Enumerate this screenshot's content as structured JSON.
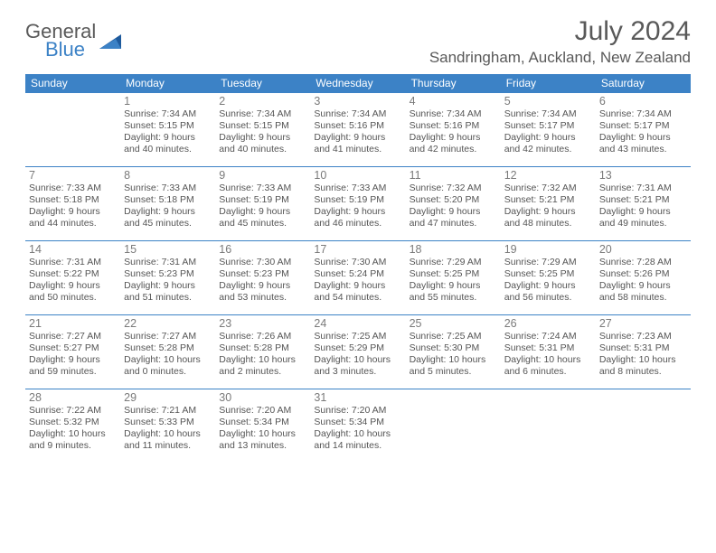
{
  "brand": {
    "name1": "General",
    "name2": "Blue"
  },
  "title": "July 2024",
  "location": "Sandringham, Auckland, New Zealand",
  "colors": {
    "accent": "#3c82c6",
    "text": "#555555",
    "muted": "#7a7a7a",
    "bg": "#ffffff"
  },
  "layout": {
    "cols": 7,
    "rows": 5,
    "firstDayOffset": 1,
    "daysInMonth": 31
  },
  "dayHeaders": [
    "Sunday",
    "Monday",
    "Tuesday",
    "Wednesday",
    "Thursday",
    "Friday",
    "Saturday"
  ],
  "days": {
    "1": {
      "sunrise": "7:34 AM",
      "sunset": "5:15 PM",
      "daylight": "9 hours and 40 minutes."
    },
    "2": {
      "sunrise": "7:34 AM",
      "sunset": "5:15 PM",
      "daylight": "9 hours and 40 minutes."
    },
    "3": {
      "sunrise": "7:34 AM",
      "sunset": "5:16 PM",
      "daylight": "9 hours and 41 minutes."
    },
    "4": {
      "sunrise": "7:34 AM",
      "sunset": "5:16 PM",
      "daylight": "9 hours and 42 minutes."
    },
    "5": {
      "sunrise": "7:34 AM",
      "sunset": "5:17 PM",
      "daylight": "9 hours and 42 minutes."
    },
    "6": {
      "sunrise": "7:34 AM",
      "sunset": "5:17 PM",
      "daylight": "9 hours and 43 minutes."
    },
    "7": {
      "sunrise": "7:33 AM",
      "sunset": "5:18 PM",
      "daylight": "9 hours and 44 minutes."
    },
    "8": {
      "sunrise": "7:33 AM",
      "sunset": "5:18 PM",
      "daylight": "9 hours and 45 minutes."
    },
    "9": {
      "sunrise": "7:33 AM",
      "sunset": "5:19 PM",
      "daylight": "9 hours and 45 minutes."
    },
    "10": {
      "sunrise": "7:33 AM",
      "sunset": "5:19 PM",
      "daylight": "9 hours and 46 minutes."
    },
    "11": {
      "sunrise": "7:32 AM",
      "sunset": "5:20 PM",
      "daylight": "9 hours and 47 minutes."
    },
    "12": {
      "sunrise": "7:32 AM",
      "sunset": "5:21 PM",
      "daylight": "9 hours and 48 minutes."
    },
    "13": {
      "sunrise": "7:31 AM",
      "sunset": "5:21 PM",
      "daylight": "9 hours and 49 minutes."
    },
    "14": {
      "sunrise": "7:31 AM",
      "sunset": "5:22 PM",
      "daylight": "9 hours and 50 minutes."
    },
    "15": {
      "sunrise": "7:31 AM",
      "sunset": "5:23 PM",
      "daylight": "9 hours and 51 minutes."
    },
    "16": {
      "sunrise": "7:30 AM",
      "sunset": "5:23 PM",
      "daylight": "9 hours and 53 minutes."
    },
    "17": {
      "sunrise": "7:30 AM",
      "sunset": "5:24 PM",
      "daylight": "9 hours and 54 minutes."
    },
    "18": {
      "sunrise": "7:29 AM",
      "sunset": "5:25 PM",
      "daylight": "9 hours and 55 minutes."
    },
    "19": {
      "sunrise": "7:29 AM",
      "sunset": "5:25 PM",
      "daylight": "9 hours and 56 minutes."
    },
    "20": {
      "sunrise": "7:28 AM",
      "sunset": "5:26 PM",
      "daylight": "9 hours and 58 minutes."
    },
    "21": {
      "sunrise": "7:27 AM",
      "sunset": "5:27 PM",
      "daylight": "9 hours and 59 minutes."
    },
    "22": {
      "sunrise": "7:27 AM",
      "sunset": "5:28 PM",
      "daylight": "10 hours and 0 minutes."
    },
    "23": {
      "sunrise": "7:26 AM",
      "sunset": "5:28 PM",
      "daylight": "10 hours and 2 minutes."
    },
    "24": {
      "sunrise": "7:25 AM",
      "sunset": "5:29 PM",
      "daylight": "10 hours and 3 minutes."
    },
    "25": {
      "sunrise": "7:25 AM",
      "sunset": "5:30 PM",
      "daylight": "10 hours and 5 minutes."
    },
    "26": {
      "sunrise": "7:24 AM",
      "sunset": "5:31 PM",
      "daylight": "10 hours and 6 minutes."
    },
    "27": {
      "sunrise": "7:23 AM",
      "sunset": "5:31 PM",
      "daylight": "10 hours and 8 minutes."
    },
    "28": {
      "sunrise": "7:22 AM",
      "sunset": "5:32 PM",
      "daylight": "10 hours and 9 minutes."
    },
    "29": {
      "sunrise": "7:21 AM",
      "sunset": "5:33 PM",
      "daylight": "10 hours and 11 minutes."
    },
    "30": {
      "sunrise": "7:20 AM",
      "sunset": "5:34 PM",
      "daylight": "10 hours and 13 minutes."
    },
    "31": {
      "sunrise": "7:20 AM",
      "sunset": "5:34 PM",
      "daylight": "10 hours and 14 minutes."
    }
  },
  "labels": {
    "sunrise": "Sunrise: ",
    "sunset": "Sunset: ",
    "daylight": "Daylight: "
  }
}
